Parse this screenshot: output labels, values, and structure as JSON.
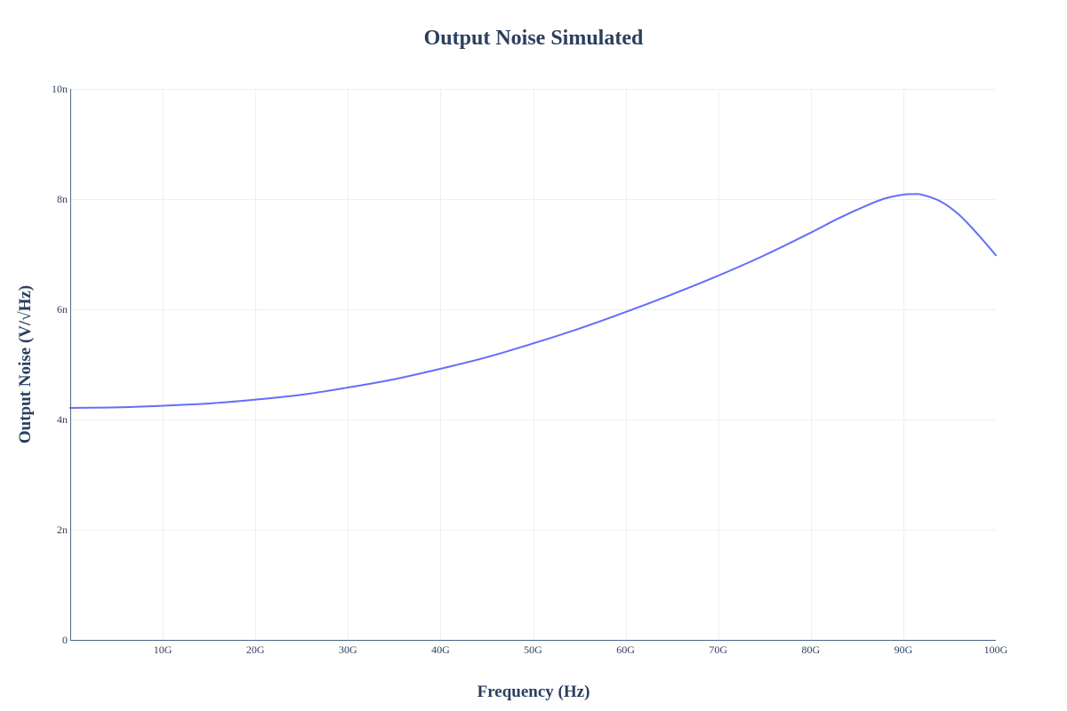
{
  "chart_data": {
    "type": "line",
    "title": "Output Noise Simulated",
    "xlabel": "Frequency (Hz)",
    "ylabel": "Output Noise (V/√Hz)",
    "xlim": [
      0,
      100000000000
    ],
    "ylim": [
      0,
      1e-08
    ],
    "grid": true,
    "legend": "none",
    "x_ticks": [
      {
        "value": 10000000000,
        "label": "10G"
      },
      {
        "value": 20000000000,
        "label": "20G"
      },
      {
        "value": 30000000000,
        "label": "30G"
      },
      {
        "value": 40000000000,
        "label": "40G"
      },
      {
        "value": 50000000000,
        "label": "50G"
      },
      {
        "value": 60000000000,
        "label": "60G"
      },
      {
        "value": 70000000000,
        "label": "70G"
      },
      {
        "value": 80000000000,
        "label": "80G"
      },
      {
        "value": 90000000000,
        "label": "90G"
      },
      {
        "value": 100000000000,
        "label": "100G"
      }
    ],
    "y_ticks": [
      {
        "value": 0,
        "label": "0"
      },
      {
        "value": 2e-09,
        "label": "2n"
      },
      {
        "value": 4e-09,
        "label": "4n"
      },
      {
        "value": 6e-09,
        "label": "6n"
      },
      {
        "value": 8e-09,
        "label": "8n"
      },
      {
        "value": 1e-08,
        "label": "10n"
      }
    ],
    "series": [
      {
        "color": "#636efa",
        "x": [
          0,
          5000000000,
          10000000000,
          15000000000,
          20000000000,
          25000000000,
          30000000000,
          35000000000,
          40000000000,
          45000000000,
          50000000000,
          55000000000,
          60000000000,
          65000000000,
          70000000000,
          75000000000,
          80000000000,
          83000000000,
          86000000000,
          88000000000,
          90000000000,
          91000000000,
          92000000000,
          94000000000,
          96000000000,
          98000000000,
          100000000000
        ],
        "y": [
          4.21e-09,
          4.22e-09,
          4.25e-09,
          4.29e-09,
          4.36e-09,
          4.45e-09,
          4.58e-09,
          4.73e-09,
          4.92e-09,
          5.13e-09,
          5.38e-09,
          5.65e-09,
          5.95e-09,
          6.27e-09,
          6.61e-09,
          6.98e-09,
          7.39e-09,
          7.65e-09,
          7.88e-09,
          8.01e-09,
          8.08e-09,
          8.09e-09,
          8.08e-09,
          7.96e-09,
          7.72e-09,
          7.37e-09,
          6.98e-09
        ]
      }
    ]
  }
}
